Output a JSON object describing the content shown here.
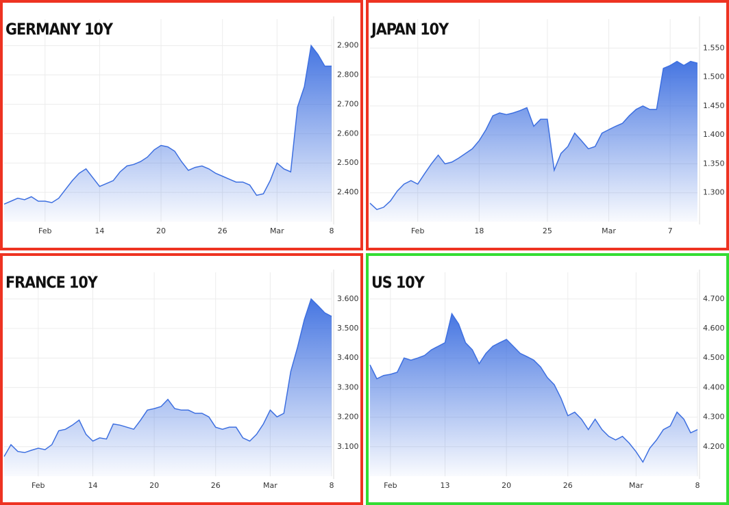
{
  "chart_data": [
    {
      "type": "area",
      "title": "GERMANY 10Y",
      "border_color": "#ee3322",
      "color": "#3d6fe0",
      "grid": true,
      "categories": [
        null,
        null,
        null,
        null,
        null,
        null,
        "Feb",
        null,
        null,
        null,
        null,
        null,
        null,
        null,
        "14",
        null,
        null,
        null,
        null,
        null,
        null,
        null,
        null,
        "20",
        null,
        null,
        null,
        null,
        null,
        null,
        null,
        null,
        "26",
        null,
        null,
        null,
        null,
        null,
        null,
        null,
        "Mar",
        null,
        null,
        null,
        null,
        null,
        null,
        null,
        "8"
      ],
      "values": [
        2.36,
        2.37,
        2.38,
        2.375,
        2.385,
        2.37,
        2.37,
        2.365,
        2.38,
        2.41,
        2.44,
        2.465,
        2.48,
        2.45,
        2.42,
        2.43,
        2.44,
        2.47,
        2.49,
        2.495,
        2.505,
        2.52,
        2.545,
        2.56,
        2.555,
        2.54,
        2.505,
        2.475,
        2.485,
        2.49,
        2.48,
        2.465,
        2.455,
        2.445,
        2.435,
        2.435,
        2.425,
        2.39,
        2.395,
        2.44,
        2.5,
        2.48,
        2.47,
        2.69,
        2.76,
        2.9,
        2.87,
        2.83,
        2.83
      ],
      "ylim": [
        2.3,
        2.99
      ],
      "yticks": [
        {
          "value": 2.4,
          "label": "2.400"
        },
        {
          "value": 2.5,
          "label": "2.500"
        },
        {
          "value": 2.6,
          "label": "2.600"
        },
        {
          "value": 2.7,
          "label": "2.700"
        },
        {
          "value": 2.8,
          "label": "2.800"
        },
        {
          "value": 2.9,
          "label": "2.900"
        }
      ]
    },
    {
      "type": "area",
      "title": "JAPAN 10Y",
      "border_color": "#ee3322",
      "color": "#3d6fe0",
      "grid": true,
      "categories": [
        null,
        null,
        null,
        null,
        null,
        null,
        null,
        "Feb",
        null,
        null,
        null,
        null,
        null,
        null,
        null,
        null,
        "18",
        null,
        null,
        null,
        null,
        null,
        null,
        null,
        null,
        null,
        "25",
        null,
        null,
        null,
        null,
        null,
        null,
        null,
        null,
        "Mar",
        null,
        null,
        null,
        null,
        null,
        null,
        null,
        null,
        "7",
        null,
        null,
        null,
        null
      ],
      "values": [
        1.282,
        1.271,
        1.275,
        1.286,
        1.303,
        1.315,
        1.321,
        1.315,
        1.333,
        1.35,
        1.365,
        1.35,
        1.353,
        1.36,
        1.368,
        1.376,
        1.39,
        1.409,
        1.433,
        1.438,
        1.435,
        1.438,
        1.442,
        1.447,
        1.415,
        1.427,
        1.427,
        1.339,
        1.368,
        1.38,
        1.403,
        1.39,
        1.376,
        1.38,
        1.403,
        1.409,
        1.415,
        1.42,
        1.433,
        1.444,
        1.45,
        1.444,
        1.444,
        1.515,
        1.52,
        1.527,
        1.52,
        1.527,
        1.524
      ],
      "ylim": [
        1.25,
        1.6
      ],
      "yticks": [
        {
          "value": 1.3,
          "label": "1.300"
        },
        {
          "value": 1.35,
          "label": "1.350"
        },
        {
          "value": 1.4,
          "label": "1.400"
        },
        {
          "value": 1.45,
          "label": "1.450"
        },
        {
          "value": 1.5,
          "label": "1.500"
        },
        {
          "value": 1.55,
          "label": "1.550"
        }
      ]
    },
    {
      "type": "area",
      "title": "FRANCE 10Y",
      "border_color": "#ee3322",
      "color": "#3d6fe0",
      "grid": true,
      "categories": [
        null,
        null,
        null,
        null,
        null,
        "Feb",
        null,
        null,
        null,
        null,
        null,
        null,
        null,
        "14",
        null,
        null,
        null,
        null,
        null,
        null,
        null,
        null,
        "20",
        null,
        null,
        null,
        null,
        null,
        null,
        null,
        null,
        "26",
        null,
        null,
        null,
        null,
        null,
        null,
        null,
        "Mar",
        null,
        null,
        null,
        null,
        null,
        null,
        null,
        null,
        "8"
      ],
      "values": [
        3.067,
        3.107,
        3.084,
        3.08,
        3.088,
        3.095,
        3.09,
        3.107,
        3.154,
        3.159,
        3.173,
        3.19,
        3.142,
        3.119,
        3.13,
        3.126,
        3.177,
        3.173,
        3.166,
        3.159,
        3.19,
        3.224,
        3.229,
        3.236,
        3.26,
        3.229,
        3.224,
        3.224,
        3.213,
        3.213,
        3.201,
        3.166,
        3.159,
        3.166,
        3.166,
        3.13,
        3.119,
        3.142,
        3.177,
        3.224,
        3.201,
        3.213,
        3.354,
        3.436,
        3.53,
        3.6,
        3.577,
        3.553,
        3.541
      ],
      "ylim": [
        3.0,
        3.69
      ],
      "yticks": [
        {
          "value": 3.1,
          "label": "3.100"
        },
        {
          "value": 3.2,
          "label": "3.200"
        },
        {
          "value": 3.3,
          "label": "3.300"
        },
        {
          "value": 3.4,
          "label": "3.400"
        },
        {
          "value": 3.5,
          "label": "3.500"
        },
        {
          "value": 3.6,
          "label": "3.600"
        }
      ]
    },
    {
      "type": "area",
      "title": "US 10Y",
      "border_color": "#33dd33",
      "color": "#3d6fe0",
      "grid": true,
      "categories": [
        null,
        null,
        null,
        "Feb",
        null,
        null,
        null,
        null,
        null,
        null,
        null,
        "13",
        null,
        null,
        null,
        null,
        null,
        null,
        null,
        null,
        "20",
        null,
        null,
        null,
        null,
        null,
        null,
        null,
        null,
        "26",
        null,
        null,
        null,
        null,
        null,
        null,
        null,
        null,
        null,
        "Mar",
        null,
        null,
        null,
        null,
        null,
        null,
        null,
        null,
        "8"
      ],
      "values": [
        4.477,
        4.43,
        4.441,
        4.445,
        4.452,
        4.5,
        4.493,
        4.5,
        4.509,
        4.528,
        4.54,
        4.552,
        4.65,
        4.615,
        4.552,
        4.528,
        4.481,
        4.516,
        4.54,
        4.552,
        4.563,
        4.54,
        4.516,
        4.505,
        4.493,
        4.47,
        4.434,
        4.41,
        4.364,
        4.305,
        4.317,
        4.293,
        4.258,
        4.293,
        4.258,
        4.235,
        4.223,
        4.235,
        4.212,
        4.183,
        4.148,
        4.195,
        4.223,
        4.258,
        4.27,
        4.317,
        4.293,
        4.247,
        4.258
      ],
      "ylim": [
        4.1,
        4.79
      ],
      "yticks": [
        {
          "value": 4.2,
          "label": "4.200"
        },
        {
          "value": 4.3,
          "label": "4.300"
        },
        {
          "value": 4.4,
          "label": "4.400"
        },
        {
          "value": 4.5,
          "label": "4.500"
        },
        {
          "value": 4.6,
          "label": "4.600"
        },
        {
          "value": 4.7,
          "label": "4.700"
        }
      ]
    }
  ]
}
